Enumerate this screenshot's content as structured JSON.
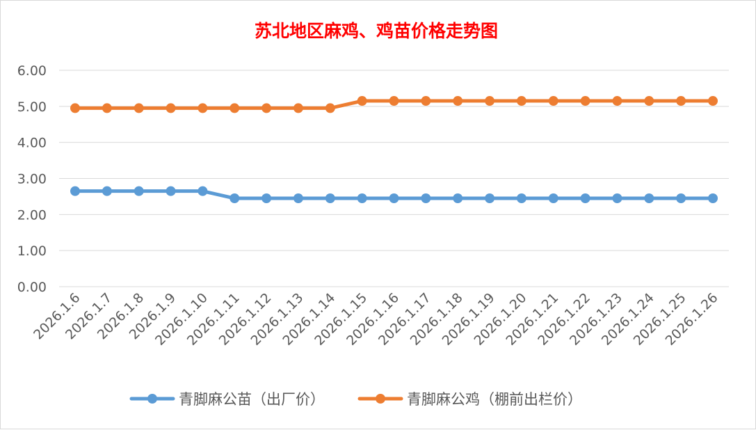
{
  "chart_data": {
    "type": "line",
    "title": "苏北地区麻鸡、鸡苗价格走势图",
    "title_color": "#ff0000",
    "xlabel": "",
    "ylabel": "",
    "categories": [
      "2026.1.6",
      "2026.1.7",
      "2026.1.8",
      "2026.1.9",
      "2026.1.10",
      "2026.1.11",
      "2026.1.12",
      "2026.1.13",
      "2026.1.14",
      "2026.1.15",
      "2026.1.16",
      "2026.1.17",
      "2026.1.18",
      "2026.1.19",
      "2026.1.20",
      "2026.1.21",
      "2026.1.22",
      "2026.1.23",
      "2026.1.24",
      "2026.1.25",
      "2026.1.26"
    ],
    "yticks": [
      "0.00",
      "1.00",
      "2.00",
      "3.00",
      "4.00",
      "5.00",
      "6.00"
    ],
    "ylim": [
      0,
      6
    ],
    "grid": true,
    "legend_position": "bottom",
    "series": [
      {
        "name": "青脚麻公苗（出厂价）",
        "color": "#5b9bd5",
        "values": [
          2.65,
          2.65,
          2.65,
          2.65,
          2.65,
          2.45,
          2.45,
          2.45,
          2.45,
          2.45,
          2.45,
          2.45,
          2.45,
          2.45,
          2.45,
          2.45,
          2.45,
          2.45,
          2.45,
          2.45,
          2.45
        ]
      },
      {
        "name": "青脚麻公鸡（棚前出栏价）",
        "color": "#ed7d31",
        "values": [
          4.95,
          4.95,
          4.95,
          4.95,
          4.95,
          4.95,
          4.95,
          4.95,
          4.95,
          5.15,
          5.15,
          5.15,
          5.15,
          5.15,
          5.15,
          5.15,
          5.15,
          5.15,
          5.15,
          5.15,
          5.15
        ]
      }
    ]
  }
}
